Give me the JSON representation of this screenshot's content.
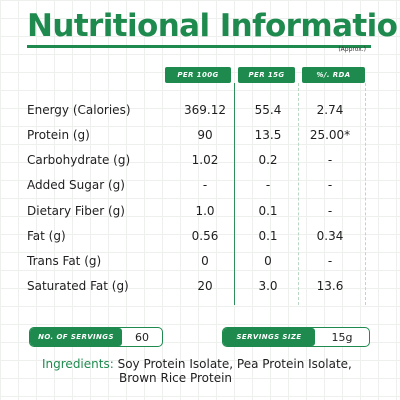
{
  "title": "Nutritional Information",
  "approx_note": "(Approx.)",
  "columns": [
    "PER 100G",
    "PER 15G",
    "%/. RDA"
  ],
  "rows": [
    {
      "label": "Energy (Calories)",
      "per100": "369.12",
      "per15": "55.4",
      "rda": "2.74"
    },
    {
      "label": "Protein (g)",
      "per100": "90",
      "per15": "13.5",
      "rda": "25.00*"
    },
    {
      "label": "Carbohydrate (g)",
      "per100": "1.02",
      "per15": "0.2",
      "rda": "-"
    },
    {
      "label": "Added Sugar (g)",
      "per100": "-",
      "per15": "-",
      "rda": "-"
    },
    {
      "label": "Dietary Fiber (g)",
      "per100": "1.0",
      "per15": "0.1",
      "rda": "-"
    },
    {
      "label": "Fat (g)",
      "per100": "0.56",
      "per15": "0.1",
      "rda": "0.34"
    },
    {
      "label": "Trans Fat (g)",
      "per100": "0",
      "per15": "0",
      "rda": "-"
    },
    {
      "label": "Saturated Fat (g)",
      "per100": "20",
      "per15": "3.0",
      "rda": "13.6"
    }
  ],
  "servings": {
    "label": "NO. OF SERVINGS",
    "value": "60"
  },
  "serving_size": {
    "label": "SERVINGS SIZE",
    "value": "15g"
  },
  "ingredients": {
    "label": "Ingredients:",
    "line1": "Soy Protein Isolate, Pea Protein Isolate,",
    "line2": "Brown Rice Protein"
  },
  "colors": {
    "brand_green": "#1e8a4e",
    "grid": "#eef0ee"
  }
}
